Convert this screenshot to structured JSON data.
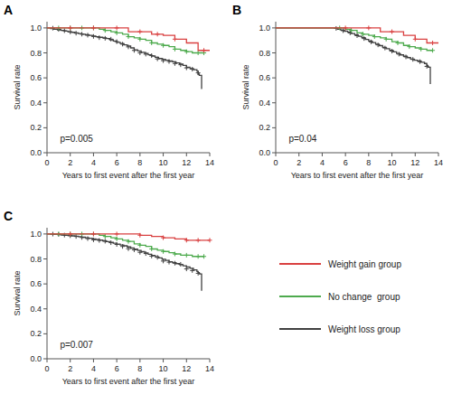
{
  "chart_data": [
    {
      "type": "step",
      "title": "A",
      "annotation": "p=0.005",
      "xlabel": "Years to first event after the first year",
      "ylabel": "Survival rate",
      "xlim": [
        0,
        14
      ],
      "ylim": [
        0.0,
        1.05
      ],
      "xticks": [
        0,
        2,
        4,
        6,
        8,
        10,
        12,
        14
      ],
      "yticks": [
        {
          "value": 0.0,
          "label": "0.0"
        },
        0.2,
        0.4,
        0.6,
        0.8,
        {
          "value": 1.0,
          "label": "1.0"
        }
      ],
      "series": [
        {
          "name": "Weight gain group",
          "color": "#d94040",
          "x": [
            0,
            1,
            2,
            3,
            4,
            5,
            6,
            7,
            8,
            9,
            9.5,
            10,
            11,
            12,
            12.5,
            13,
            13.5,
            14
          ],
          "values": [
            1.0,
            1.0,
            1.0,
            1.0,
            1.0,
            1.0,
            1.0,
            0.97,
            0.97,
            0.95,
            0.95,
            0.94,
            0.91,
            0.88,
            0.88,
            0.82,
            0.82,
            0.82
          ],
          "censor_x": [
            2,
            4,
            6,
            8,
            9.5,
            11,
            13.5
          ],
          "censor_values": [
            1.0,
            1.0,
            1.0,
            0.97,
            0.95,
            0.91,
            0.82
          ]
        },
        {
          "name": "No change  group",
          "color": "#4daa4d",
          "x": [
            0,
            0.5,
            1,
            1.5,
            2,
            2.5,
            3,
            3.5,
            4,
            4.5,
            5,
            5.5,
            6,
            6.5,
            7,
            7.5,
            8,
            8.5,
            9,
            9.5,
            10,
            10.5,
            11,
            11.5,
            12,
            12.5,
            13,
            13.5
          ],
          "values": [
            1.0,
            1.0,
            1.0,
            1.0,
            1.0,
            1.0,
            1.0,
            1.0,
            1.0,
            0.99,
            0.98,
            0.97,
            0.96,
            0.95,
            0.93,
            0.92,
            0.91,
            0.9,
            0.88,
            0.87,
            0.86,
            0.85,
            0.83,
            0.82,
            0.81,
            0.8,
            0.8,
            0.8
          ],
          "censor_x": [
            1,
            2,
            3,
            4,
            5,
            6,
            7,
            8,
            9,
            10,
            11,
            12,
            13,
            13.5
          ],
          "censor_values": [
            1.0,
            1.0,
            1.0,
            1.0,
            0.98,
            0.96,
            0.93,
            0.91,
            0.88,
            0.86,
            0.83,
            0.81,
            0.8,
            0.8
          ]
        },
        {
          "name": "Weight loss group",
          "color": "#404040",
          "x": [
            0,
            0.3,
            0.6,
            0.9,
            1.2,
            1.5,
            1.8,
            2.1,
            2.4,
            2.7,
            3.0,
            3.3,
            3.6,
            3.9,
            4.2,
            4.5,
            4.8,
            5.1,
            5.4,
            5.7,
            6.0,
            6.3,
            6.6,
            6.9,
            7.2,
            7.5,
            7.8,
            8.1,
            8.4,
            8.7,
            9.0,
            9.3,
            9.6,
            9.9,
            10.2,
            10.5,
            10.8,
            11.1,
            11.4,
            11.7,
            12.0,
            12.3,
            12.6,
            12.9,
            13.0,
            13.1,
            13.3
          ],
          "values": [
            1.0,
            0.995,
            0.99,
            0.985,
            0.98,
            0.975,
            0.97,
            0.965,
            0.96,
            0.955,
            0.95,
            0.945,
            0.94,
            0.935,
            0.93,
            0.925,
            0.92,
            0.915,
            0.905,
            0.895,
            0.885,
            0.875,
            0.865,
            0.855,
            0.84,
            0.825,
            0.815,
            0.805,
            0.795,
            0.785,
            0.775,
            0.765,
            0.755,
            0.748,
            0.742,
            0.735,
            0.728,
            0.72,
            0.71,
            0.7,
            0.685,
            0.675,
            0.665,
            0.655,
            0.63,
            0.62,
            0.51
          ],
          "censor_x": [
            0.5,
            1.0,
            1.5,
            2.0,
            2.5,
            3.0,
            3.5,
            4.0,
            4.5,
            5.0,
            5.5,
            6.0,
            6.5,
            7.0,
            7.5,
            8.0,
            8.5,
            9.0,
            9.5,
            10.0,
            10.5,
            11.0,
            11.5,
            12.0,
            12.5,
            13.0
          ],
          "censor_values": [
            0.998,
            0.988,
            0.978,
            0.968,
            0.958,
            0.95,
            0.942,
            0.932,
            0.922,
            0.917,
            0.91,
            0.89,
            0.87,
            0.848,
            0.82,
            0.8,
            0.79,
            0.778,
            0.752,
            0.738,
            0.731,
            0.715,
            0.705,
            0.68,
            0.67,
            0.64
          ]
        }
      ]
    },
    {
      "type": "step",
      "title": "B",
      "annotation": "p=0.04",
      "xlabel": "Years to first event after the first year",
      "ylabel": "Survival rate",
      "xlim": [
        0,
        14
      ],
      "ylim": [
        0.0,
        1.05
      ],
      "xticks": [
        0,
        2,
        4,
        6,
        8,
        10,
        12,
        14
      ],
      "yticks": [
        {
          "value": 0.0,
          "label": "0.0"
        },
        0.2,
        0.4,
        0.6,
        0.8,
        {
          "value": 1.0,
          "label": "1.0"
        }
      ],
      "series": [
        {
          "color": "#d94040",
          "x": [
            0,
            5,
            6,
            7,
            8,
            9,
            9.5,
            10,
            11,
            12,
            12.5,
            13,
            13.5,
            14
          ],
          "values": [
            1.0,
            1.0,
            1.0,
            1.0,
            1.0,
            0.97,
            0.97,
            0.97,
            0.94,
            0.91,
            0.91,
            0.88,
            0.88,
            0.88
          ],
          "censor_x": [
            6,
            8,
            10,
            12,
            13.5
          ],
          "censor_values": [
            1.0,
            1.0,
            0.97,
            0.91,
            0.88
          ]
        },
        {
          "color": "#4daa4d",
          "x": [
            0,
            5,
            5.5,
            6,
            6.5,
            7,
            7.5,
            8,
            8.5,
            9,
            9.5,
            10,
            10.5,
            11,
            11.5,
            12,
            12.5,
            13,
            13.5
          ],
          "values": [
            1.0,
            1.0,
            1.0,
            0.99,
            0.98,
            0.96,
            0.95,
            0.94,
            0.93,
            0.92,
            0.91,
            0.89,
            0.88,
            0.86,
            0.85,
            0.84,
            0.83,
            0.82,
            0.82
          ],
          "censor_x": [
            5.5,
            6.5,
            7.5,
            8.5,
            9.5,
            10.5,
            11.5,
            12.5,
            13.5
          ],
          "censor_values": [
            1.0,
            0.98,
            0.95,
            0.93,
            0.91,
            0.88,
            0.85,
            0.83,
            0.82
          ]
        },
        {
          "color": "#404040",
          "x": [
            0,
            5,
            5.3,
            5.6,
            5.9,
            6.2,
            6.5,
            6.8,
            7.1,
            7.4,
            7.7,
            8.0,
            8.3,
            8.6,
            8.9,
            9.2,
            9.5,
            9.8,
            10.1,
            10.4,
            10.7,
            11.0,
            11.3,
            11.6,
            11.9,
            12.2,
            12.5,
            12.8,
            13.0,
            13.1,
            13.3
          ],
          "values": [
            1.0,
            1.0,
            0.99,
            0.982,
            0.974,
            0.966,
            0.955,
            0.944,
            0.933,
            0.922,
            0.908,
            0.895,
            0.882,
            0.87,
            0.858,
            0.845,
            0.834,
            0.82,
            0.808,
            0.796,
            0.784,
            0.773,
            0.762,
            0.75,
            0.742,
            0.735,
            0.725,
            0.715,
            0.7,
            0.685,
            0.55
          ],
          "censor_x": [
            5.2,
            5.8,
            6.4,
            7.0,
            7.6,
            8.2,
            8.8,
            9.4,
            10.0,
            10.6,
            11.2,
            11.8,
            12.4,
            13.0
          ],
          "censor_values": [
            0.996,
            0.978,
            0.96,
            0.938,
            0.915,
            0.888,
            0.864,
            0.839,
            0.814,
            0.79,
            0.768,
            0.748,
            0.73,
            0.692
          ]
        }
      ]
    },
    {
      "type": "step",
      "title": "C",
      "annotation": "p=0.007",
      "xlabel": "Years to first event after the first year",
      "ylabel": "Survival rate",
      "xlim": [
        0,
        14
      ],
      "ylim": [
        0.0,
        1.05
      ],
      "xticks": [
        0,
        2,
        4,
        6,
        8,
        10,
        12,
        14
      ],
      "yticks": [
        {
          "value": 0.0,
          "label": "0.0"
        },
        0.2,
        0.4,
        0.6,
        0.8,
        {
          "value": 1.0,
          "label": "1.0"
        }
      ],
      "series": [
        {
          "color": "#d94040",
          "x": [
            0,
            1,
            2,
            3,
            4,
            5,
            6,
            7,
            8,
            9,
            10,
            11,
            12,
            13,
            13.5,
            14
          ],
          "values": [
            1.0,
            1.0,
            1.0,
            1.0,
            1.0,
            1.0,
            1.0,
            1.0,
            0.99,
            0.98,
            0.97,
            0.96,
            0.95,
            0.95,
            0.95,
            0.95
          ],
          "censor_x": [
            2,
            4,
            6,
            8,
            10,
            12,
            13,
            14
          ],
          "censor_values": [
            1.0,
            1.0,
            1.0,
            0.99,
            0.97,
            0.95,
            0.95,
            0.95
          ]
        },
        {
          "color": "#4daa4d",
          "x": [
            0,
            0.5,
            1,
            1.5,
            2,
            2.5,
            3,
            3.5,
            4,
            4.5,
            5,
            5.5,
            6,
            6.5,
            7,
            7.5,
            8,
            8.5,
            9,
            9.5,
            10,
            10.5,
            11,
            11.5,
            12,
            12.5,
            13,
            13.5
          ],
          "values": [
            1.0,
            1.0,
            1.0,
            1.0,
            1.0,
            1.0,
            1.0,
            1.0,
            1.0,
            0.99,
            0.98,
            0.97,
            0.96,
            0.95,
            0.94,
            0.92,
            0.91,
            0.9,
            0.88,
            0.87,
            0.86,
            0.85,
            0.84,
            0.83,
            0.83,
            0.82,
            0.82,
            0.82
          ],
          "censor_x": [
            1,
            2,
            3,
            4,
            5,
            6,
            7,
            8,
            9,
            10,
            11,
            12,
            13,
            13.5
          ],
          "censor_values": [
            1.0,
            1.0,
            1.0,
            1.0,
            0.98,
            0.96,
            0.94,
            0.91,
            0.88,
            0.86,
            0.84,
            0.83,
            0.82,
            0.82
          ]
        },
        {
          "color": "#404040",
          "x": [
            0,
            0.3,
            0.6,
            0.9,
            1.2,
            1.5,
            1.8,
            2.1,
            2.4,
            2.7,
            3.0,
            3.3,
            3.6,
            3.9,
            4.2,
            4.5,
            4.8,
            5.1,
            5.4,
            5.7,
            6.0,
            6.3,
            6.6,
            6.9,
            7.2,
            7.5,
            7.8,
            8.1,
            8.4,
            8.7,
            9.0,
            9.3,
            9.6,
            9.9,
            10.2,
            10.5,
            10.8,
            11.1,
            11.4,
            11.7,
            12.0,
            12.3,
            12.6,
            12.9,
            13.0,
            13.1,
            13.3
          ],
          "values": [
            1.0,
            0.999,
            0.997,
            0.995,
            0.992,
            0.99,
            0.988,
            0.985,
            0.982,
            0.978,
            0.974,
            0.97,
            0.966,
            0.961,
            0.956,
            0.951,
            0.945,
            0.939,
            0.933,
            0.926,
            0.919,
            0.912,
            0.905,
            0.896,
            0.887,
            0.878,
            0.868,
            0.858,
            0.848,
            0.838,
            0.828,
            0.818,
            0.808,
            0.798,
            0.788,
            0.778,
            0.77,
            0.762,
            0.754,
            0.745,
            0.735,
            0.725,
            0.712,
            0.7,
            0.69,
            0.68,
            0.545
          ],
          "censor_x": [
            0.5,
            1.0,
            1.5,
            2.0,
            2.5,
            3.0,
            3.5,
            4.0,
            4.5,
            5.0,
            5.5,
            6.0,
            6.5,
            7.0,
            7.5,
            8.0,
            8.5,
            9.0,
            9.5,
            10.0,
            10.5,
            11.0,
            11.5,
            12.0,
            12.5,
            13.0
          ],
          "censor_values": [
            0.999,
            0.997,
            0.991,
            0.986,
            0.98,
            0.972,
            0.963,
            0.953,
            0.948,
            0.942,
            0.93,
            0.916,
            0.9,
            0.882,
            0.873,
            0.853,
            0.843,
            0.823,
            0.813,
            0.783,
            0.774,
            0.766,
            0.757,
            0.72,
            0.707,
            0.685
          ]
        }
      ]
    }
  ]
}
